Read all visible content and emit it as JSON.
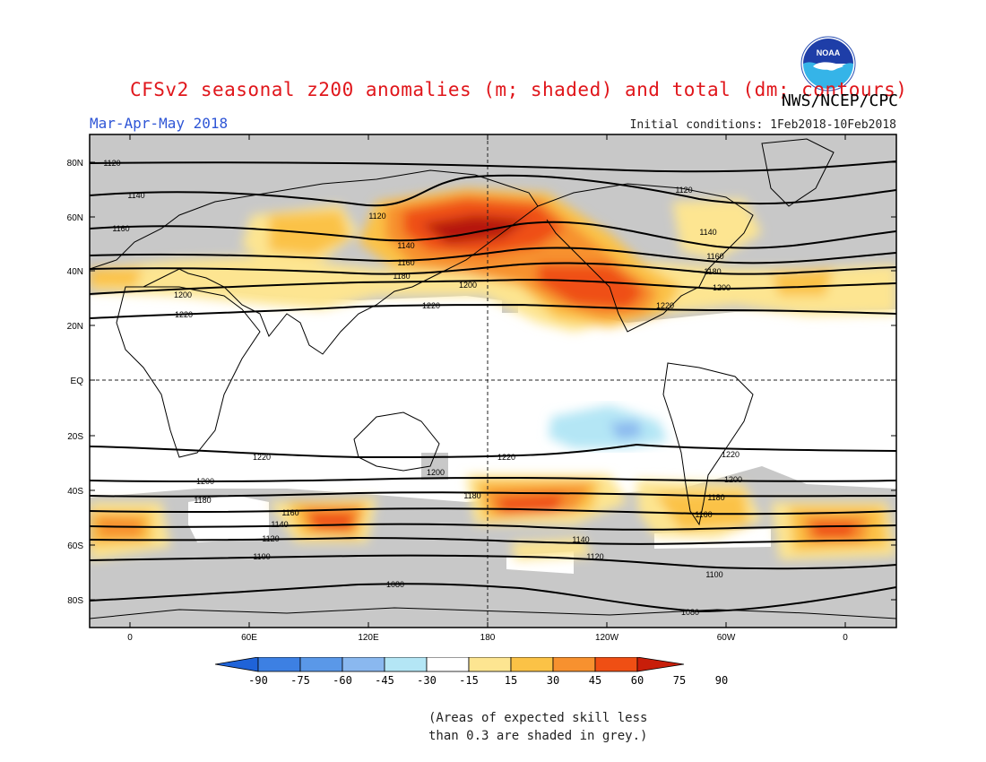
{
  "header": {
    "title": "CFSv2 seasonal z200 anomalies (m; shaded) and total (dm; contours)",
    "season": "Mar-Apr-May 2018",
    "initial_conditions": "Initial conditions: 1Feb2018-10Feb2018",
    "agency": "NWS/NCEP/CPC",
    "logo_text": "NOAA"
  },
  "map": {
    "lat_labels": [
      "80N",
      "60N",
      "40N",
      "20N",
      "EQ",
      "20S",
      "40S",
      "60S",
      "80S"
    ],
    "lon_labels": [
      "0",
      "60E",
      "120E",
      "180",
      "120W",
      "60W",
      "0"
    ],
    "contour_labels": [
      "1120",
      "1140",
      "1160",
      "1180",
      "1200",
      "1220",
      "1220",
      "1200",
      "1180",
      "1160",
      "1140",
      "1120",
      "1100",
      "1080"
    ],
    "contour_label_extra": [
      "1120",
      "1120",
      "1140",
      "1160",
      "1180",
      "1200",
      "1220",
      "1140",
      "1160",
      "1180",
      "1200",
      "1220",
      "1220",
      "1220",
      "1200",
      "1200",
      "1180",
      "1180",
      "1160",
      "1160",
      "1140",
      "1120",
      "1100",
      "1080"
    ]
  },
  "colorbar": {
    "labels": [
      "-90",
      "-75",
      "-60",
      "-45",
      "-30",
      "-15",
      "15",
      "30",
      "45",
      "60",
      "75",
      "90"
    ],
    "colors": [
      "#1f63d8",
      "#3d80e3",
      "#5a98e8",
      "#8ab8ef",
      "#b4e6f5",
      "#ffffff",
      "#fde591",
      "#fbc246",
      "#f7912f",
      "#ef4f14",
      "#c81e0a"
    ]
  },
  "note": {
    "line1": "(Areas of expected skill less",
    "line2": "than 0.3 are shaded in grey.)"
  }
}
